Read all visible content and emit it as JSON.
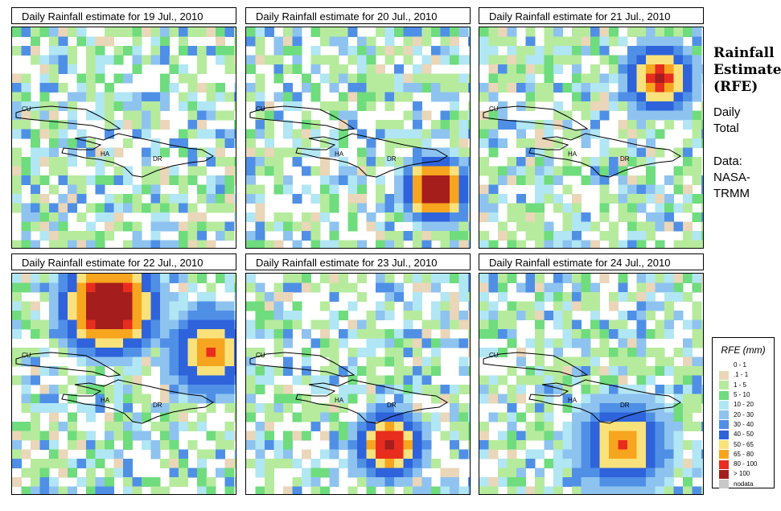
{
  "panels": [
    {
      "title": "Daily Rainfall estimate for  19 Jul., 2010",
      "event": "none"
    },
    {
      "title": "Daily Rainfall estimate for  20 Jul., 2010",
      "event": "south"
    },
    {
      "title": "Daily Rainfall estimate for  21 Jul., 2010",
      "event": "north"
    },
    {
      "title": "Daily Rainfall estimate for  22 Jul., 2010",
      "event": "bahamas"
    },
    {
      "title": "Daily Rainfall estimate for  23 Jul., 2010",
      "event": "southwest"
    },
    {
      "title": "Daily Rainfall estimate for  24 Jul., 2010",
      "event": "band"
    }
  ],
  "map_labels": {
    "cu": "CU",
    "ha": "HA",
    "dr": "DR"
  },
  "side": {
    "title_line1": "Rainfall",
    "title_line2": "Estimate",
    "title_line3": "(RFE)",
    "daily": "Daily",
    "total": "Total",
    "data": "Data:",
    "nasa": "NASA-",
    "trmm": "TRMM"
  },
  "legend": {
    "title": "RFE (mm)",
    "items": [
      {
        "label": "0 - 1",
        "color": "#ffffff"
      },
      {
        "label": ".1 - 1",
        "color": "#ead6b8"
      },
      {
        "label": "1 - 5",
        "color": "#b6eb9d"
      },
      {
        "label": "5 - 10",
        "color": "#6fdc7e"
      },
      {
        "label": "10 - 20",
        "color": "#b1e6f4"
      },
      {
        "label": "20 - 30",
        "color": "#8ec3f0"
      },
      {
        "label": "30 - 40",
        "color": "#4f90e6"
      },
      {
        "label": "40 - 50",
        "color": "#2e63dc"
      },
      {
        "label": "50 - 65",
        "color": "#f9e27b"
      },
      {
        "label": "65 - 80",
        "color": "#f7a51e"
      },
      {
        "label": "80 - 100",
        "color": "#e82d1e"
      },
      {
        "label": "> 100",
        "color": "#a51d1d"
      },
      {
        "label": "nodata",
        "color": "#c8c8c8"
      }
    ]
  }
}
